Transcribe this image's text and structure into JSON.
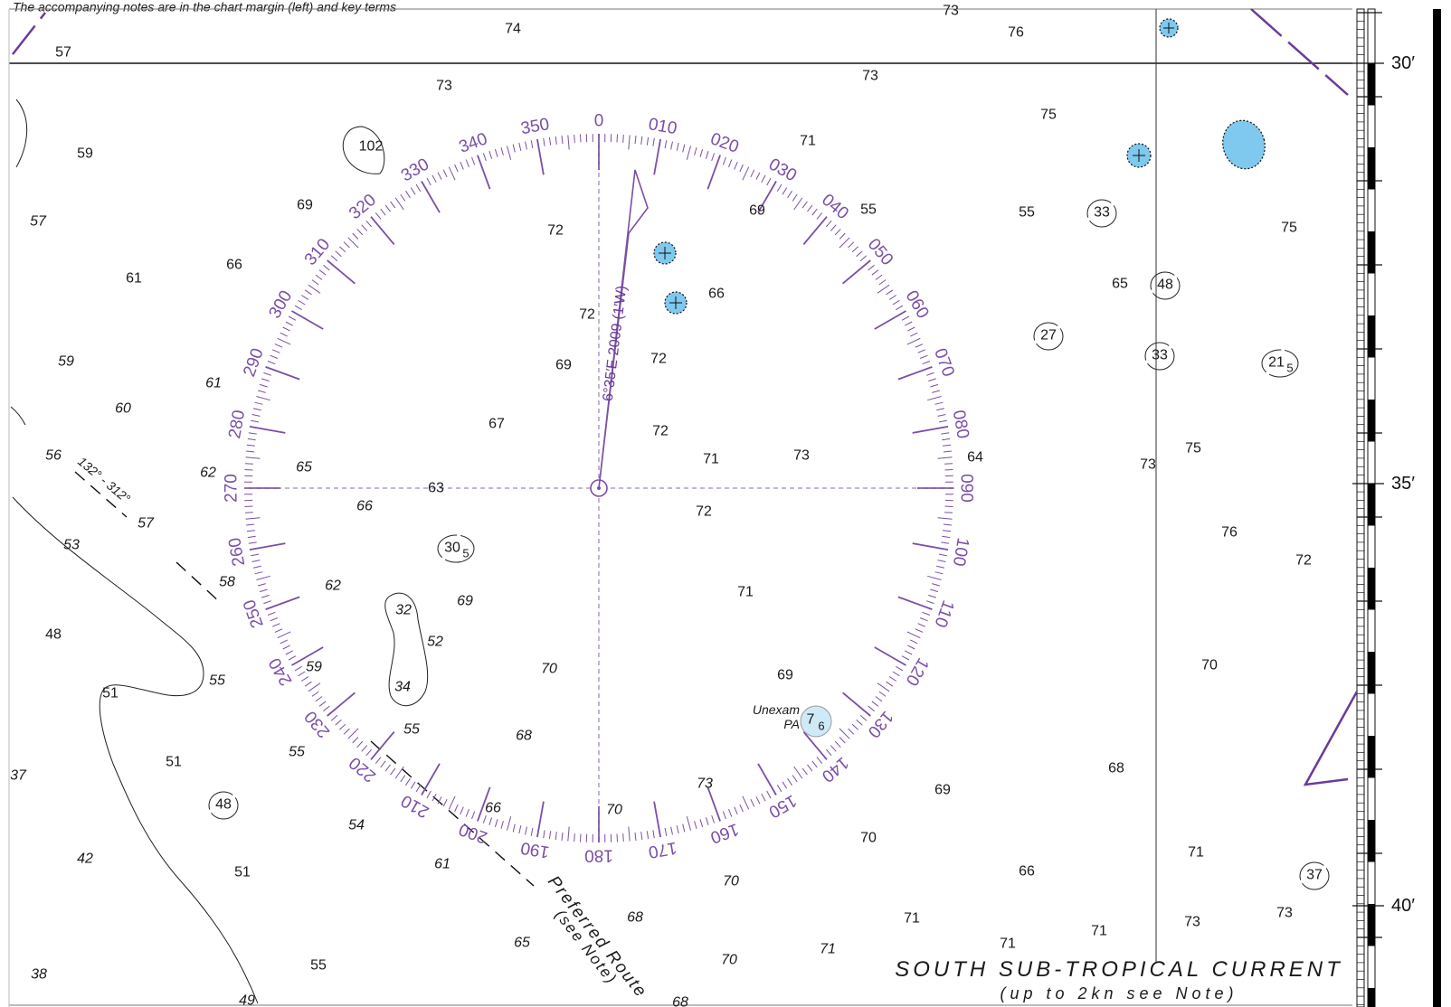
{
  "header_note": "The accompanying notes are in the chart margin (left) and key terms",
  "latitude_labels": [
    {
      "text": "30′",
      "minute": 30
    },
    {
      "text": "35′",
      "minute": 35
    },
    {
      "text": "40′",
      "minute": 40
    }
  ],
  "compass_rose": {
    "variation_label": "6°35′E 2009 (1′W)",
    "bearing_labels": [
      "0",
      "010",
      "020",
      "030",
      "040",
      "050",
      "060",
      "070",
      "080",
      "090",
      "100",
      "110",
      "120",
      "130",
      "140",
      "150",
      "160",
      "170",
      "180",
      "190",
      "200",
      "210",
      "220",
      "230",
      "240",
      "250",
      "260",
      "270",
      "280",
      "290",
      "300",
      "310",
      "320",
      "330",
      "340",
      "350"
    ]
  },
  "soundings": [
    {
      "v": "57",
      "it": false
    },
    {
      "v": "74",
      "it": false
    },
    {
      "v": "73",
      "it": false
    },
    {
      "v": "76",
      "it": false
    },
    {
      "v": "73",
      "it": false
    },
    {
      "v": "73",
      "it": false
    },
    {
      "v": "59",
      "it": false
    },
    {
      "v": "102",
      "it": false
    },
    {
      "v": "71",
      "it": false
    },
    {
      "v": "75",
      "it": false
    },
    {
      "v": "57",
      "it": true
    },
    {
      "v": "69",
      "it": false
    },
    {
      "v": "72",
      "it": false
    },
    {
      "v": "69",
      "it": false
    },
    {
      "v": "55",
      "it": false
    },
    {
      "v": "55",
      "it": false
    },
    {
      "v": "75",
      "it": false
    },
    {
      "v": "61",
      "it": false
    },
    {
      "v": "66",
      "it": false
    },
    {
      "v": "66",
      "it": false
    },
    {
      "v": "65",
      "it": false
    },
    {
      "v": "72",
      "it": false
    },
    {
      "v": "59",
      "it": true
    },
    {
      "v": "69",
      "it": false
    },
    {
      "v": "72",
      "it": false
    },
    {
      "v": "61",
      "it": true
    },
    {
      "v": "60",
      "it": true
    },
    {
      "v": "67",
      "it": false
    },
    {
      "v": "72",
      "it": false
    },
    {
      "v": "56",
      "it": true
    },
    {
      "v": "71",
      "it": false
    },
    {
      "v": "73",
      "it": false
    },
    {
      "v": "64",
      "it": false
    },
    {
      "v": "73",
      "it": false
    },
    {
      "v": "75",
      "it": false
    },
    {
      "v": "62",
      "it": true
    },
    {
      "v": "65",
      "it": true
    },
    {
      "v": "63",
      "it": false
    },
    {
      "v": "66",
      "it": true
    },
    {
      "v": "72",
      "it": false
    },
    {
      "v": "57",
      "it": true
    },
    {
      "v": "76",
      "it": false
    },
    {
      "v": "72",
      "it": false
    },
    {
      "v": "53",
      "it": true
    },
    {
      "v": "58",
      "it": true
    },
    {
      "v": "62",
      "it": true
    },
    {
      "v": "71",
      "it": false
    },
    {
      "v": "69",
      "it": true
    },
    {
      "v": "48",
      "it": false
    },
    {
      "v": "52",
      "it": true
    },
    {
      "v": "70",
      "it": false
    },
    {
      "v": "59",
      "it": true
    },
    {
      "v": "70",
      "it": true
    },
    {
      "v": "69",
      "it": false
    },
    {
      "v": "55",
      "it": true
    },
    {
      "v": "51",
      "it": false
    },
    {
      "v": "55",
      "it": true
    },
    {
      "v": "68",
      "it": true
    },
    {
      "v": "55",
      "it": true
    },
    {
      "v": "51",
      "it": false
    },
    {
      "v": "68",
      "it": false
    },
    {
      "v": "37",
      "it": true
    },
    {
      "v": "73",
      "it": true
    },
    {
      "v": "69",
      "it": false
    },
    {
      "v": "66",
      "it": true
    },
    {
      "v": "70",
      "it": true
    },
    {
      "v": "54",
      "it": true
    },
    {
      "v": "70",
      "it": false
    },
    {
      "v": "42",
      "it": true
    },
    {
      "v": "61",
      "it": true
    },
    {
      "v": "51",
      "it": false
    },
    {
      "v": "71",
      "it": false
    },
    {
      "v": "70",
      "it": true
    },
    {
      "v": "66",
      "it": false
    },
    {
      "v": "68",
      "it": true
    },
    {
      "v": "71",
      "it": false
    },
    {
      "v": "73",
      "it": false
    },
    {
      "v": "73",
      "it": false
    },
    {
      "v": "65",
      "it": true
    },
    {
      "v": "71",
      "it": false
    },
    {
      "v": "71",
      "it": false
    },
    {
      "v": "38",
      "it": true
    },
    {
      "v": "55",
      "it": false
    },
    {
      "v": "70",
      "it": true
    },
    {
      "v": "71",
      "it": true
    },
    {
      "v": "49",
      "it": true
    },
    {
      "v": "68",
      "it": true
    }
  ],
  "circled_soundings": [
    {
      "main": "33",
      "sub": ""
    },
    {
      "main": "48",
      "sub": ""
    },
    {
      "main": "27",
      "sub": ""
    },
    {
      "main": "33",
      "sub": ""
    },
    {
      "main": "21",
      "sub": "5"
    },
    {
      "main": "30",
      "sub": "5"
    },
    {
      "main": "48",
      "sub": ""
    },
    {
      "main": "37",
      "sub": ""
    }
  ],
  "enclosed_soundings": [
    {
      "v": "32"
    },
    {
      "v": "34"
    }
  ],
  "route": {
    "bearing_label": "132° - 312°",
    "name": "Preferred Route",
    "note": "(see Note)"
  },
  "unexamined": {
    "label_1": "Unexam",
    "label_2": "PA",
    "depth_main": "7",
    "depth_sub": "6"
  },
  "current": {
    "title": "SOUTH SUB-TROPICAL CURRENT",
    "note": "(up to 2kn see Note)"
  },
  "colors": {
    "water": "#ffffff",
    "rose": "#7a4fa6",
    "danger_fill": "#7fc8ee",
    "text": "#1a1a1a",
    "border": "#000000"
  }
}
